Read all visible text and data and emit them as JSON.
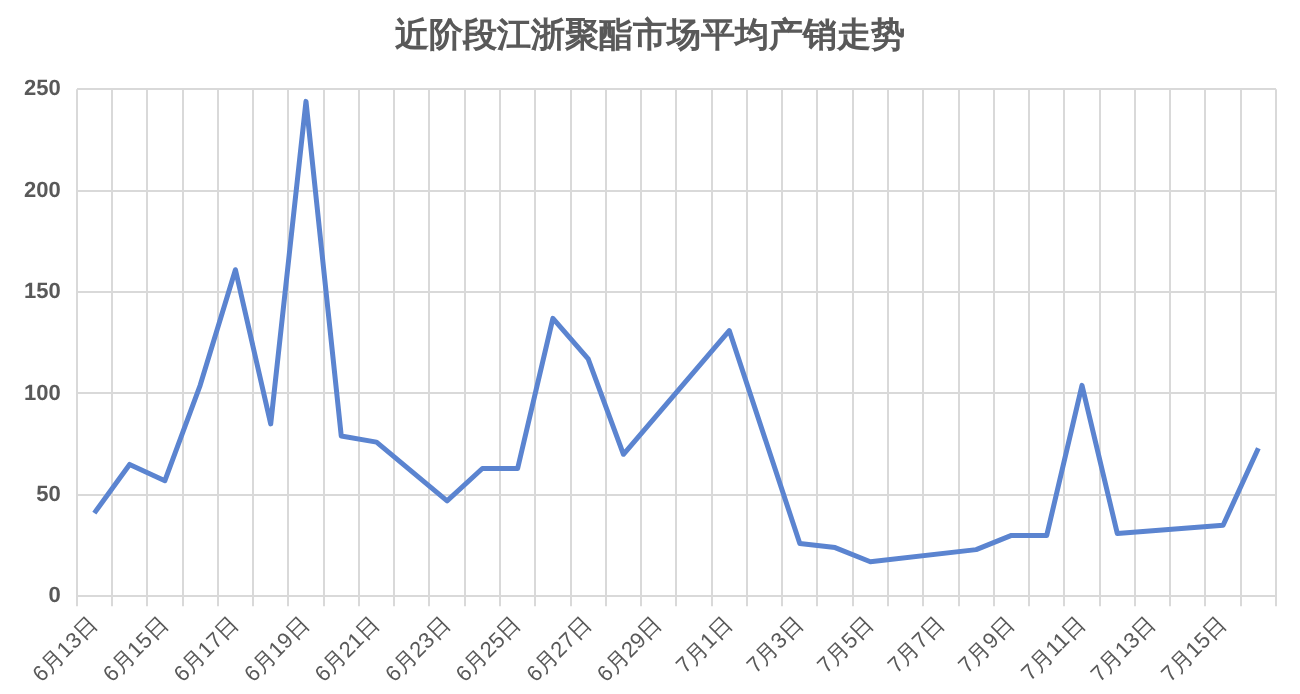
{
  "chart_data": {
    "type": "line",
    "title": "近阶段江浙聚酯市场平均产销走势",
    "categories": [
      "6月13日",
      null,
      "6月15日",
      null,
      "6月17日",
      null,
      "6月19日",
      null,
      "6月21日",
      null,
      "6月23日",
      null,
      "6月25日",
      null,
      "6月27日",
      null,
      "6月29日",
      null,
      "7月1日",
      null,
      "7月3日",
      null,
      "7月5日",
      null,
      "7月7日",
      null,
      "7月9日",
      null,
      "7月11日",
      null,
      "7月13日",
      null,
      "7月15日",
      null
    ],
    "series": [
      {
        "color": "#5b84d0",
        "values": [
          41,
          65,
          57,
          104,
          161,
          85,
          244,
          79,
          76,
          null,
          47,
          63,
          63,
          137,
          117,
          70,
          null,
          null,
          131,
          null,
          26,
          24,
          17,
          null,
          null,
          23,
          30,
          30,
          104,
          31,
          null,
          null,
          35,
          73
        ]
      }
    ],
    "ylim": [
      0,
      250
    ],
    "yticks": [
      0,
      50,
      100,
      150,
      200,
      250
    ],
    "grid": true,
    "legend": false,
    "marker": "none",
    "line_style": "solid"
  }
}
